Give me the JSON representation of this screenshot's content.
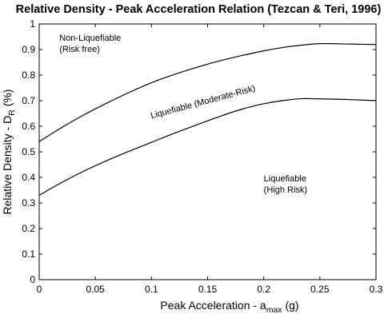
{
  "chart_data": {
    "type": "line",
    "title": "Relative Density - Peak Acceleration Relation (Tezcan & Teri, 1996)",
    "xlabel": {
      "main": "Peak Acceleration - a",
      "sub": "max",
      "tail": " (g)"
    },
    "ylabel": {
      "main": "Relative Density - D",
      "sub": "R",
      "tail": " (%)"
    },
    "xlim": [
      0,
      0.3
    ],
    "ylim": [
      0,
      1
    ],
    "xticks": [
      "0",
      "0.05",
      "0.1",
      "0.15",
      "0.2",
      "0.25",
      "0.3"
    ],
    "yticks": [
      "0",
      "0.1",
      "0.2",
      "0.3",
      "0.4",
      "0.5",
      "0.6",
      "0.7",
      "0.8",
      "0.9",
      "1"
    ],
    "grid": false,
    "series": [
      {
        "x": [
          0,
          0.02,
          0.04,
          0.06,
          0.08,
          0.1,
          0.12,
          0.14,
          0.16,
          0.18,
          0.2,
          0.22,
          0.24,
          0.25,
          0.26,
          0.28,
          0.3
        ],
        "y": [
          0.54,
          0.595,
          0.645,
          0.69,
          0.732,
          0.77,
          0.802,
          0.83,
          0.855,
          0.876,
          0.895,
          0.91,
          0.92,
          0.923,
          0.923,
          0.921,
          0.92
        ]
      },
      {
        "x": [
          0,
          0.02,
          0.04,
          0.06,
          0.08,
          0.1,
          0.12,
          0.14,
          0.16,
          0.18,
          0.2,
          0.22,
          0.235,
          0.25,
          0.27,
          0.29,
          0.3
        ],
        "y": [
          0.33,
          0.38,
          0.425,
          0.465,
          0.502,
          0.537,
          0.572,
          0.605,
          0.637,
          0.666,
          0.688,
          0.702,
          0.708,
          0.707,
          0.705,
          0.702,
          0.7
        ]
      }
    ],
    "annotations": [
      {
        "lines": [
          "Non-Liquefiable",
          "(Risk free)"
        ],
        "x": 0.018,
        "y": 0.935,
        "rotate": 0
      },
      {
        "lines": [
          "Liquefiable (Moderate-Risk)"
        ],
        "x": 0.1,
        "y": 0.63,
        "rotate": -15
      },
      {
        "lines": [
          "Liquefiable",
          "(High Risk)"
        ],
        "x": 0.2,
        "y": 0.385,
        "rotate": 0
      }
    ]
  }
}
